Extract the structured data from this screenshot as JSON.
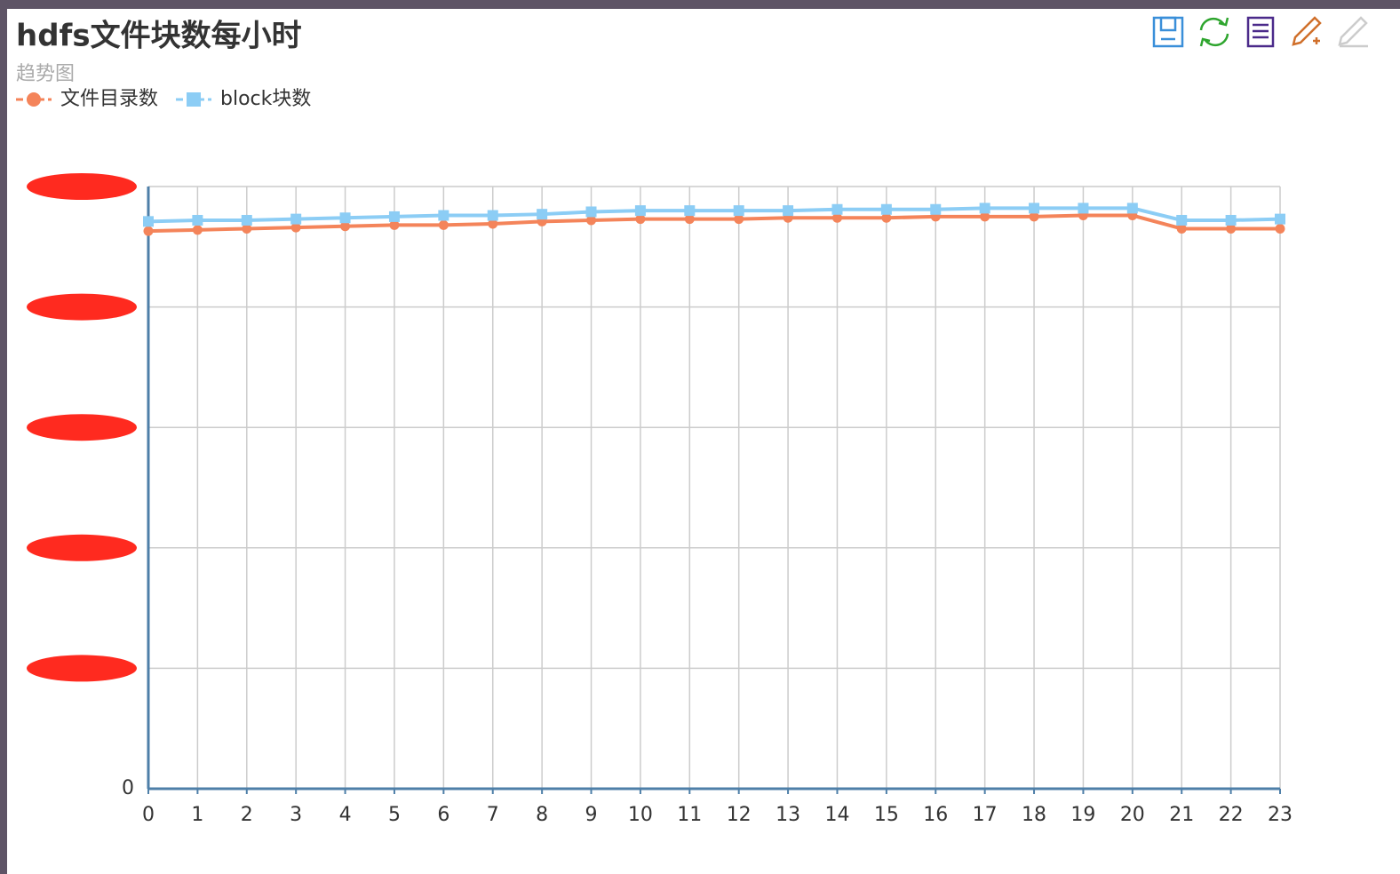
{
  "chart_data": {
    "type": "line",
    "title": "hdfs文件块数每小时",
    "subtitle": "趋势图",
    "categories": [
      "0",
      "1",
      "2",
      "3",
      "4",
      "5",
      "6",
      "7",
      "8",
      "9",
      "10",
      "11",
      "12",
      "13",
      "14",
      "15",
      "16",
      "17",
      "18",
      "19",
      "20",
      "21",
      "22",
      "23"
    ],
    "series": [
      {
        "name": "文件目录数",
        "color": "#f4845a",
        "marker": "circle",
        "values": [
          4.63,
          4.64,
          4.65,
          4.66,
          4.67,
          4.68,
          4.68,
          4.69,
          4.71,
          4.72,
          4.73,
          4.73,
          4.73,
          4.74,
          4.74,
          4.74,
          4.75,
          4.75,
          4.75,
          4.76,
          4.76,
          4.65,
          4.65,
          4.65
        ]
      },
      {
        "name": "block块数",
        "color": "#8ccdf5",
        "marker": "square",
        "values": [
          4.71,
          4.72,
          4.72,
          4.73,
          4.74,
          4.75,
          4.76,
          4.76,
          4.77,
          4.79,
          4.8,
          4.8,
          4.8,
          4.8,
          4.81,
          4.81,
          4.81,
          4.82,
          4.82,
          4.82,
          4.82,
          4.72,
          4.72,
          4.73
        ]
      }
    ],
    "ylim": [
      0,
      5
    ],
    "yticks": [
      0,
      {
        "value": 1,
        "label": null
      },
      {
        "value": 2,
        "label": null
      },
      {
        "value": 3,
        "label": null
      },
      {
        "value": 4,
        "label": null
      },
      {
        "value": 5,
        "label": null
      }
    ],
    "grid": true
  }
}
